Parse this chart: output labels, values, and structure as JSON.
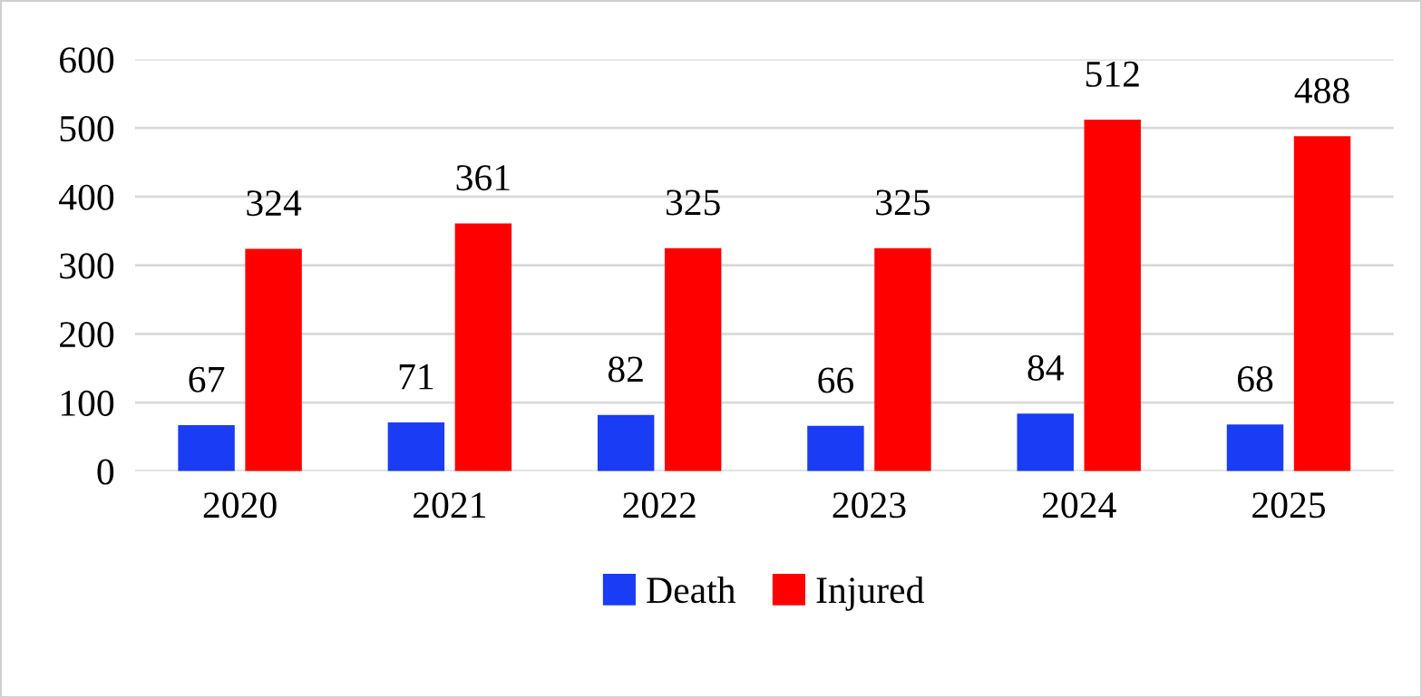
{
  "chart_data": {
    "type": "bar",
    "categories": [
      "2020",
      "2021",
      "2022",
      "2023",
      "2024",
      "2025"
    ],
    "series": [
      {
        "name": "Death",
        "color": "#1a3cf5",
        "values": [
          67,
          71,
          82,
          66,
          84,
          68
        ]
      },
      {
        "name": "Injured",
        "color": "#ff0000",
        "values": [
          324,
          361,
          325,
          325,
          512,
          488
        ]
      }
    ],
    "ylim": [
      0,
      600
    ],
    "yticks": [
      0,
      100,
      200,
      300,
      400,
      500,
      600
    ],
    "grid": "y",
    "legend": "bottom",
    "data_labels": true
  }
}
